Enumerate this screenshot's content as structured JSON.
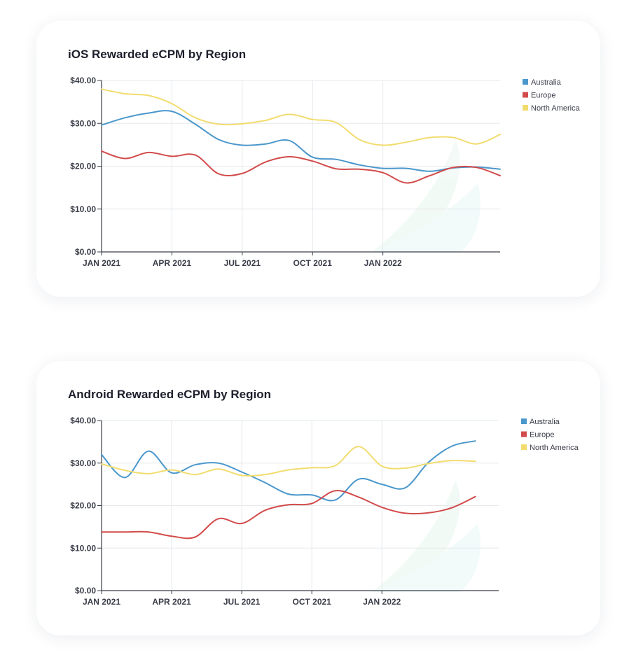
{
  "charts": [
    {
      "id": "ios",
      "title": "iOS Rewarded eCPM by Region",
      "chart_data": {
        "type": "line",
        "title": "iOS Rewarded eCPM by Region",
        "xlabel": "",
        "ylabel": "",
        "x_ticks": [
          "JAN 2021",
          "APR 2021",
          "JUL 2021",
          "OCT 2021",
          "JAN 2022"
        ],
        "y_ticks": [
          "$0.00",
          "$10.00",
          "$20.00",
          "$30.00",
          "$40.00"
        ],
        "ylim": [
          0,
          40
        ],
        "x_unit": "month",
        "x_start": "2021-01",
        "x_end": "2022-06",
        "legend_position": "right",
        "grid": true,
        "series": [
          {
            "name": "Australia",
            "color": "#4a97cc",
            "points": [
              [
                "2021-01",
                29.6
              ],
              [
                "2021-02",
                31.3
              ],
              [
                "2021-03",
                32.4
              ],
              [
                "2021-04",
                32.8
              ],
              [
                "2021-05",
                29.8
              ],
              [
                "2021-06",
                26.2
              ],
              [
                "2021-07",
                24.9
              ],
              [
                "2021-08",
                25.2
              ],
              [
                "2021-09",
                26.0
              ],
              [
                "2021-10",
                22.1
              ],
              [
                "2021-11",
                21.6
              ],
              [
                "2021-12",
                20.3
              ],
              [
                "2022-01",
                19.5
              ],
              [
                "2022-02",
                19.5
              ],
              [
                "2022-03",
                18.8
              ],
              [
                "2022-04",
                19.6
              ],
              [
                "2022-05",
                19.8
              ],
              [
                "2022-06",
                19.3
              ]
            ]
          },
          {
            "name": "Europe",
            "color": "#d24b4b",
            "points": [
              [
                "2021-01",
                23.5
              ],
              [
                "2021-02",
                21.8
              ],
              [
                "2021-03",
                23.2
              ],
              [
                "2021-04",
                22.3
              ],
              [
                "2021-05",
                22.6
              ],
              [
                "2021-06",
                18.2
              ],
              [
                "2021-07",
                18.3
              ],
              [
                "2021-08",
                21.0
              ],
              [
                "2021-09",
                22.2
              ],
              [
                "2021-10",
                21.2
              ],
              [
                "2021-11",
                19.4
              ],
              [
                "2021-12",
                19.3
              ],
              [
                "2022-01",
                18.5
              ],
              [
                "2022-02",
                16.1
              ],
              [
                "2022-03",
                17.8
              ],
              [
                "2022-04",
                19.7
              ],
              [
                "2022-05",
                19.7
              ],
              [
                "2022-06",
                17.8
              ]
            ]
          },
          {
            "name": "North America",
            "color": "#f2dc6e",
            "points": [
              [
                "2021-01",
                38.0
              ],
              [
                "2021-02",
                36.9
              ],
              [
                "2021-03",
                36.5
              ],
              [
                "2021-04",
                34.6
              ],
              [
                "2021-05",
                31.3
              ],
              [
                "2021-06",
                29.8
              ],
              [
                "2021-07",
                29.9
              ],
              [
                "2021-08",
                30.7
              ],
              [
                "2021-09",
                32.1
              ],
              [
                "2021-10",
                30.9
              ],
              [
                "2021-11",
                30.2
              ],
              [
                "2021-12",
                26.2
              ],
              [
                "2022-01",
                24.9
              ],
              [
                "2022-02",
                25.6
              ],
              [
                "2022-03",
                26.7
              ],
              [
                "2022-04",
                26.7
              ],
              [
                "2022-05",
                25.2
              ],
              [
                "2022-06",
                27.4
              ]
            ]
          }
        ]
      }
    },
    {
      "id": "android",
      "title": "Android Rewarded eCPM by Region",
      "chart_data": {
        "type": "line",
        "title": "Android Rewarded eCPM by Region",
        "xlabel": "",
        "ylabel": "",
        "x_ticks": [
          "JAN 2021",
          "APR 2021",
          "JUL 2021",
          "OCT 2021",
          "JAN 2022"
        ],
        "y_ticks": [
          "$0.00",
          "$10.00",
          "$20.00",
          "$30.00",
          "$40.00"
        ],
        "ylim": [
          0,
          40
        ],
        "x_unit": "month",
        "x_start": "2021-01",
        "x_end": "2022-06",
        "legend_position": "right",
        "grid": true,
        "series": [
          {
            "name": "Australia",
            "color": "#4a97cc",
            "points": [
              [
                "2021-01",
                32.0
              ],
              [
                "2021-02",
                26.6
              ],
              [
                "2021-03",
                32.8
              ],
              [
                "2021-04",
                27.7
              ],
              [
                "2021-05",
                29.6
              ],
              [
                "2021-06",
                30.0
              ],
              [
                "2021-07",
                27.9
              ],
              [
                "2021-08",
                25.4
              ],
              [
                "2021-09",
                22.7
              ],
              [
                "2021-10",
                22.5
              ],
              [
                "2021-11",
                21.3
              ],
              [
                "2021-12",
                26.2
              ],
              [
                "2022-01",
                25.0
              ],
              [
                "2022-02",
                24.2
              ],
              [
                "2022-03",
                30.2
              ],
              [
                "2022-04",
                34.0
              ],
              [
                "2022-05",
                35.2
              ]
            ]
          },
          {
            "name": "Europe",
            "color": "#d24b4b",
            "points": [
              [
                "2021-01",
                13.8
              ],
              [
                "2021-02",
                13.8
              ],
              [
                "2021-03",
                13.8
              ],
              [
                "2021-04",
                12.8
              ],
              [
                "2021-05",
                12.6
              ],
              [
                "2021-06",
                16.9
              ],
              [
                "2021-07",
                15.8
              ],
              [
                "2021-08",
                18.9
              ],
              [
                "2021-09",
                20.2
              ],
              [
                "2021-10",
                20.5
              ],
              [
                "2021-11",
                23.5
              ],
              [
                "2021-12",
                22.0
              ],
              [
                "2022-01",
                19.6
              ],
              [
                "2022-02",
                18.2
              ],
              [
                "2022-03",
                18.3
              ],
              [
                "2022-04",
                19.5
              ],
              [
                "2022-05",
                22.1
              ]
            ]
          },
          {
            "name": "North America",
            "color": "#f2dc6e",
            "points": [
              [
                "2021-01",
                29.8
              ],
              [
                "2021-02",
                28.3
              ],
              [
                "2021-03",
                27.5
              ],
              [
                "2021-04",
                28.4
              ],
              [
                "2021-05",
                27.3
              ],
              [
                "2021-06",
                28.6
              ],
              [
                "2021-07",
                27.1
              ],
              [
                "2021-08",
                27.3
              ],
              [
                "2021-09",
                28.4
              ],
              [
                "2021-10",
                28.9
              ],
              [
                "2021-11",
                29.4
              ],
              [
                "2021-12",
                33.9
              ],
              [
                "2022-01",
                29.3
              ],
              [
                "2022-02",
                28.8
              ],
              [
                "2022-03",
                29.9
              ],
              [
                "2022-04",
                30.6
              ],
              [
                "2022-05",
                30.4
              ]
            ]
          }
        ]
      }
    }
  ]
}
